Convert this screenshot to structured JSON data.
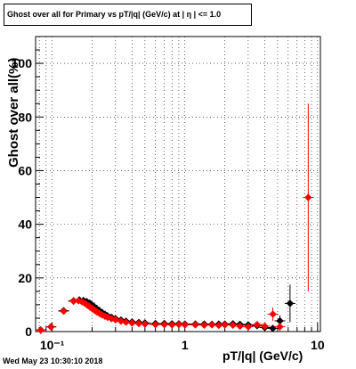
{
  "title": "Ghost over all for Primary vs pT/|q| (GeV/c) at | η | <= 1.0",
  "datestamp": "Wed May 23 10:30:10 2018",
  "colors": {
    "series_black": "#000000",
    "series_red": "#ff0000"
  },
  "chart_data": {
    "type": "scatter",
    "title": "Ghost over all for Primary vs pT/|q| (GeV/c) at | η | <= 1.0",
    "xlabel": "pT/|q| (GeV/c)",
    "ylabel": "Ghost over all(%)",
    "xscale": "log",
    "xlim": [
      0.075,
      10.5
    ],
    "ylim": [
      0,
      110
    ],
    "xticks": [
      {
        "v": 0.1,
        "label": "10⁻¹"
      },
      {
        "v": 1,
        "label": "1"
      },
      {
        "v": 10,
        "label": "10"
      }
    ],
    "yticks": [
      0,
      20,
      40,
      60,
      80,
      100
    ],
    "grid": true,
    "series": [
      {
        "color": "#000000",
        "points": [
          [
            0.082,
            0.6,
            0.5
          ],
          [
            0.098,
            1.8,
            0.5
          ],
          [
            0.122,
            7.8,
            0.8
          ],
          [
            0.145,
            11.5,
            0.8
          ],
          [
            0.16,
            11.8,
            0.7
          ],
          [
            0.172,
            11.6,
            0.7
          ],
          [
            0.182,
            11.2,
            0.7
          ],
          [
            0.192,
            10.6,
            0.6
          ],
          [
            0.2,
            9.8,
            0.6
          ],
          [
            0.21,
            9.0,
            0.6
          ],
          [
            0.22,
            8.2,
            0.5
          ],
          [
            0.23,
            7.5,
            0.5
          ],
          [
            0.24,
            6.9,
            0.5
          ],
          [
            0.25,
            6.4,
            0.5
          ],
          [
            0.26,
            5.9,
            0.4
          ],
          [
            0.28,
            5.3,
            0.4
          ],
          [
            0.3,
            4.8,
            0.4
          ],
          [
            0.33,
            4.3,
            0.4
          ],
          [
            0.36,
            3.9,
            0.3
          ],
          [
            0.4,
            3.6,
            0.3
          ],
          [
            0.45,
            3.4,
            0.3
          ],
          [
            0.5,
            3.2,
            0.3
          ],
          [
            0.6,
            3.0,
            0.3
          ],
          [
            0.7,
            3.0,
            0.3
          ],
          [
            0.8,
            2.9,
            0.3
          ],
          [
            0.9,
            2.9,
            0.3
          ],
          [
            1.0,
            2.8,
            0.3
          ],
          [
            1.2,
            2.8,
            0.3
          ],
          [
            1.4,
            2.8,
            0.4
          ],
          [
            1.6,
            2.7,
            0.4
          ],
          [
            1.8,
            2.8,
            0.4
          ],
          [
            2.0,
            2.8,
            0.5
          ],
          [
            2.3,
            2.9,
            0.5
          ],
          [
            2.6,
            2.7,
            0.6
          ],
          [
            3.0,
            2.5,
            0.7
          ],
          [
            3.5,
            2.2,
            0.8
          ],
          [
            4.0,
            1.5,
            1.0
          ],
          [
            4.6,
            1.2,
            1.2
          ],
          [
            5.2,
            4.0,
            2.0
          ],
          [
            6.2,
            10.5,
            7.0
          ]
        ]
      },
      {
        "color": "#ff0000",
        "points": [
          [
            0.082,
            0.5,
            0.5
          ],
          [
            0.098,
            1.7,
            0.5
          ],
          [
            0.122,
            7.6,
            0.8
          ],
          [
            0.145,
            11.3,
            0.8
          ],
          [
            0.158,
            11.5,
            0.7
          ],
          [
            0.168,
            11.1,
            0.7
          ],
          [
            0.178,
            10.4,
            0.7
          ],
          [
            0.188,
            9.6,
            0.6
          ],
          [
            0.198,
            8.8,
            0.6
          ],
          [
            0.208,
            8.0,
            0.6
          ],
          [
            0.218,
            7.3,
            0.5
          ],
          [
            0.228,
            6.7,
            0.5
          ],
          [
            0.238,
            6.2,
            0.5
          ],
          [
            0.25,
            5.7,
            0.5
          ],
          [
            0.262,
            5.3,
            0.4
          ],
          [
            0.28,
            4.8,
            0.4
          ],
          [
            0.3,
            4.4,
            0.4
          ],
          [
            0.33,
            3.9,
            0.4
          ],
          [
            0.36,
            3.5,
            0.3
          ],
          [
            0.4,
            3.2,
            0.3
          ],
          [
            0.45,
            3.0,
            0.3
          ],
          [
            0.5,
            2.8,
            0.3
          ],
          [
            0.6,
            2.6,
            0.3
          ],
          [
            0.7,
            2.6,
            0.3
          ],
          [
            0.8,
            2.5,
            0.3
          ],
          [
            0.9,
            2.6,
            0.3
          ],
          [
            1.0,
            2.5,
            0.3
          ],
          [
            1.2,
            2.5,
            0.3
          ],
          [
            1.4,
            2.4,
            0.4
          ],
          [
            1.6,
            2.5,
            0.4
          ],
          [
            1.8,
            2.3,
            0.4
          ],
          [
            2.0,
            2.5,
            0.5
          ],
          [
            2.3,
            2.4,
            0.5
          ],
          [
            2.6,
            2.0,
            0.6
          ],
          [
            3.0,
            1.8,
            0.7
          ],
          [
            3.5,
            2.6,
            0.9
          ],
          [
            4.0,
            2.0,
            1.0
          ],
          [
            4.6,
            6.5,
            2.5
          ],
          [
            5.2,
            1.8,
            1.5
          ],
          [
            8.5,
            50.0,
            35.0
          ]
        ]
      }
    ]
  }
}
